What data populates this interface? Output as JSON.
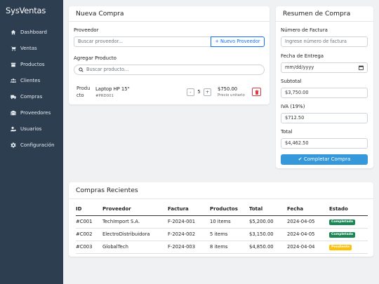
{
  "app": {
    "title": "SysVentas"
  },
  "sidebar": {
    "items": [
      {
        "label": "Dashboard",
        "icon": "home-icon"
      },
      {
        "label": "Ventas",
        "icon": "cart-icon"
      },
      {
        "label": "Productos",
        "icon": "box-icon"
      },
      {
        "label": "Clientes",
        "icon": "users-icon"
      },
      {
        "label": "Compras",
        "icon": "truck-icon"
      },
      {
        "label": "Proveedores",
        "icon": "warehouse-icon"
      },
      {
        "label": "Usuarios",
        "icon": "user-cog-icon"
      },
      {
        "label": "Configuración",
        "icon": "gear-icon"
      }
    ]
  },
  "nueva_compra": {
    "title": "Nueva Compra",
    "proveedor_label": "Proveedor",
    "proveedor_placeholder": "Buscar proveedor...",
    "nuevo_proveedor_button": "+ Nuevo Proveedor",
    "agregar_label": "Agregar Producto",
    "producto_placeholder": "Buscar producto...",
    "item": {
      "image_alt": "Producto",
      "name": "Laptop HP 15\"",
      "code": "#PRD001",
      "qty_minus": "-",
      "qty": "5",
      "qty_plus": "+",
      "price": "$750.00",
      "price_note": "Precio unitario"
    }
  },
  "resumen": {
    "title": "Resumen de Compra",
    "factura_label": "Número de Factura",
    "factura_placeholder": "Ingrese número de factura",
    "fecha_label": "Fecha de Entrega",
    "fecha_value": "mm/dd/yyyy",
    "subtotal_label": "Subtotal",
    "subtotal_value": "$3,750.00",
    "iva_label": "IVA (19%)",
    "iva_value": "$712.50",
    "total_label": "Total",
    "total_value": "$4,462.50",
    "complete_button": "Completar Compra"
  },
  "recientes": {
    "title": "Compras Recientes",
    "headers": [
      "ID",
      "Proveedor",
      "Factura",
      "Productos",
      "Total",
      "Fecha",
      "Estado"
    ],
    "rows": [
      {
        "id": "#C001",
        "proveedor": "TechImport S.A.",
        "factura": "F-2024-001",
        "productos": "10 items",
        "total": "$5,200.00",
        "fecha": "2024-04-05",
        "estado": "Completada",
        "estado_color": "#198754"
      },
      {
        "id": "#C002",
        "proveedor": "ElectroDistribuidora",
        "factura": "F-2024-002",
        "productos": "5 items",
        "total": "$3,150.00",
        "fecha": "2024-04-05",
        "estado": "Completada",
        "estado_color": "#198754"
      },
      {
        "id": "#C003",
        "proveedor": "GlobalTech",
        "factura": "F-2024-003",
        "productos": "8 items",
        "total": "$4,850.00",
        "fecha": "2024-04-04",
        "estado": "Pendiente",
        "estado_color": "#ffc107"
      }
    ]
  },
  "colors": {
    "sidebar": "#2c3e50",
    "primary": "#3498db",
    "outline": "#0d6efd",
    "danger": "#dc3545",
    "success": "#198754",
    "warning": "#ffc107"
  }
}
